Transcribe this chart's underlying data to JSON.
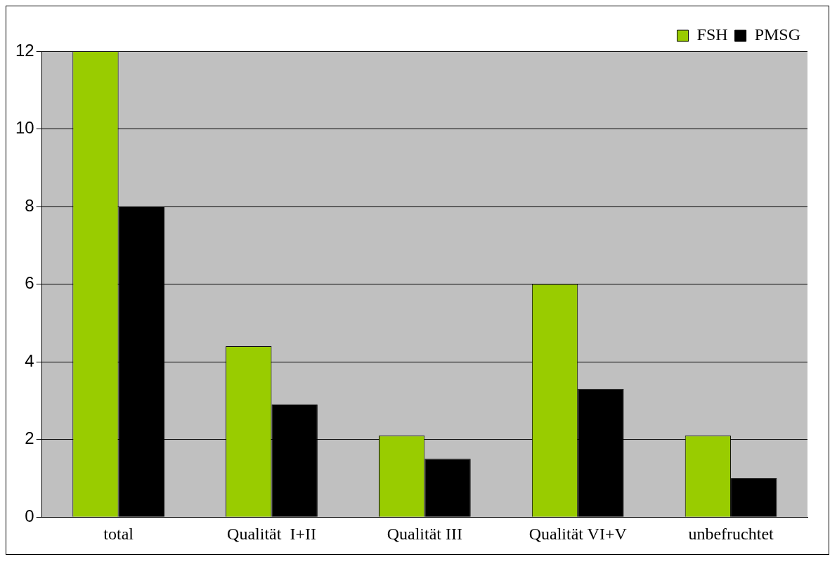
{
  "chart_data": {
    "type": "bar",
    "categories": [
      "total",
      "Qualität  I+II",
      "Qualität III",
      "Qualität VI+V",
      "unbefruchtet"
    ],
    "series": [
      {
        "name": "FSH",
        "color": "#99cc00",
        "values": [
          12,
          4.4,
          2.1,
          6,
          2.1
        ]
      },
      {
        "name": "PMSG",
        "color": "#000000",
        "values": [
          8,
          2.9,
          1.5,
          3.3,
          1
        ]
      }
    ],
    "ylim": [
      0,
      12
    ],
    "yticks": [
      0,
      2,
      4,
      6,
      8,
      10,
      12
    ],
    "grid": "y",
    "legend": "top right"
  }
}
